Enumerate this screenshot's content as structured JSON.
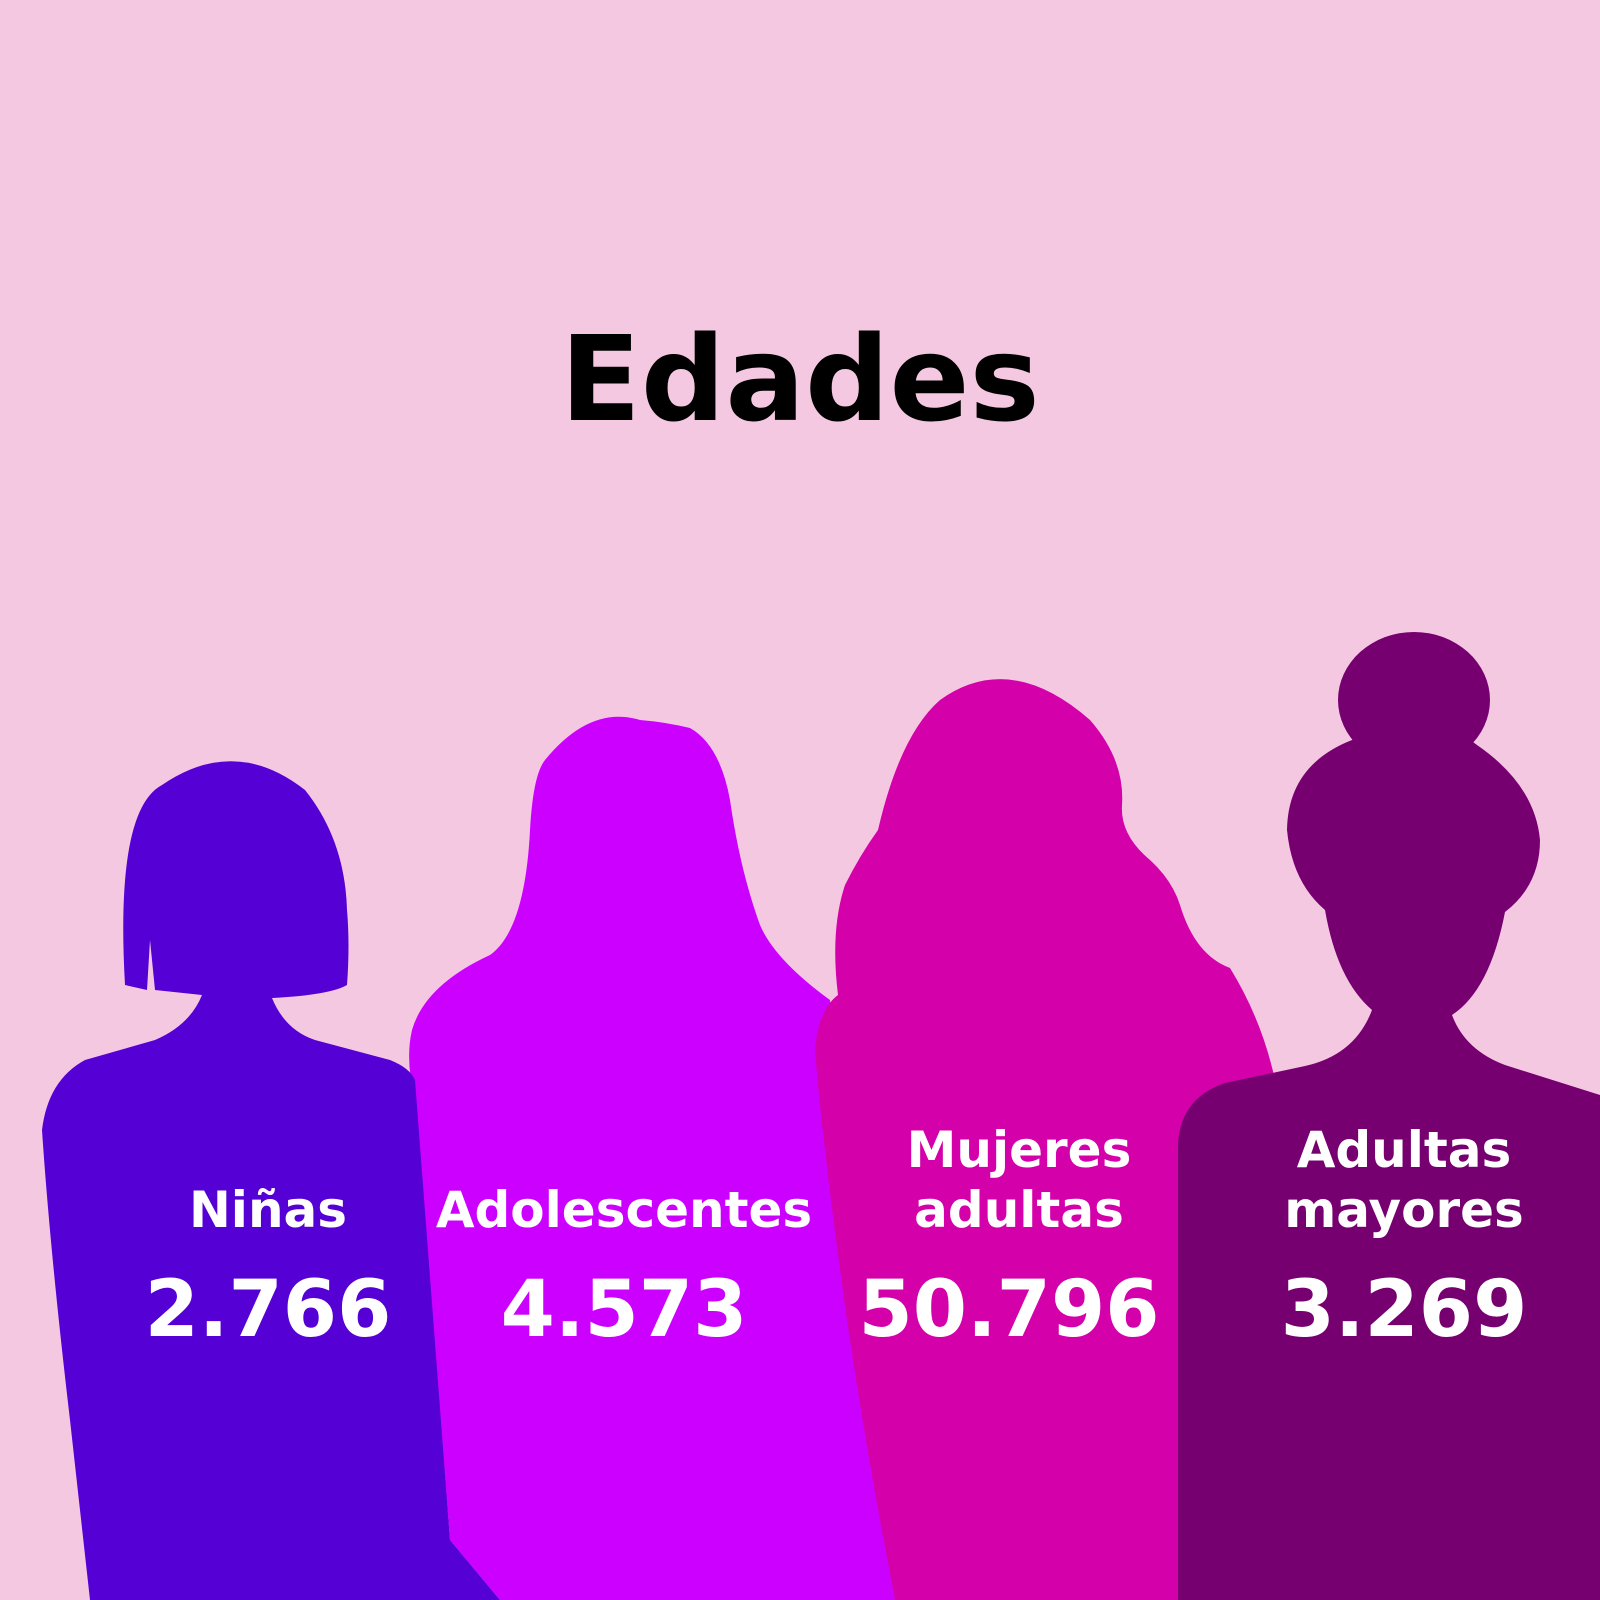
{
  "header": {
    "title": "Edades"
  },
  "groups": [
    {
      "label": "Niñas",
      "value": "2.766"
    },
    {
      "label": "Adolescentes",
      "value": "4.573"
    },
    {
      "label": "Mujeres adultas",
      "value": "50.796"
    },
    {
      "label": "Adultas mayores",
      "value": "3.269"
    }
  ]
}
